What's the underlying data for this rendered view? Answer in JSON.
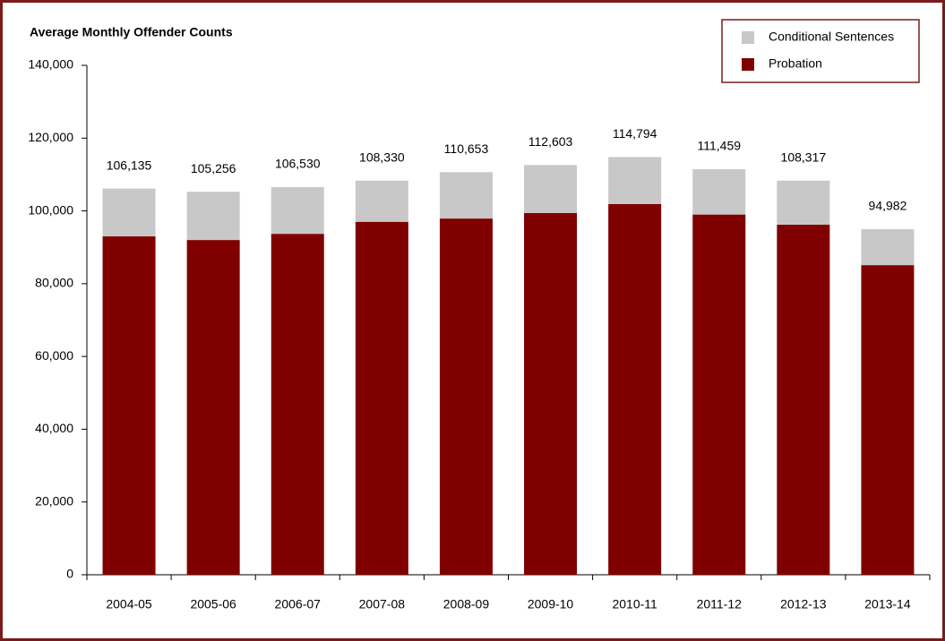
{
  "chart_data": {
    "type": "stacked_bar",
    "title": "Average Monthly Offender Counts",
    "categories": [
      "2004-05",
      "2005-06",
      "2006-07",
      "2007-08",
      "2008-09",
      "2009-10",
      "2010-11",
      "2011-12",
      "2012-13",
      "2013-14"
    ],
    "series": [
      {
        "name": "Probation",
        "color": "#800000",
        "values": [
          93000,
          92000,
          93700,
          97000,
          97900,
          99400,
          101900,
          99000,
          96200,
          85100
        ]
      },
      {
        "name": "Conditional Sentences",
        "color": "#c8c8c8",
        "values": [
          13135,
          13256,
          12830,
          11330,
          12753,
          13203,
          12894,
          12459,
          12117,
          9882
        ]
      }
    ],
    "totals": {
      "values": [
        106135,
        105256,
        106530,
        108330,
        110653,
        112603,
        114794,
        111459,
        108317,
        94982
      ],
      "value_labels": [
        "106,135",
        "105,256",
        "106,530",
        "108,330",
        "110,653",
        "112,603",
        "114,794",
        "111,459",
        "108,317",
        "94,982"
      ]
    },
    "ylim": [
      0,
      140000
    ],
    "yticks": [
      0,
      {
        "value": 20000,
        "label": "20,000"
      },
      {
        "value": 40000,
        "label": "40,000"
      },
      {
        "value": 60000,
        "label": "60,000"
      },
      {
        "value": 80000,
        "label": "80,000"
      },
      {
        "value": 100000,
        "label": "100,000"
      },
      {
        "value": 120000,
        "label": "120,000"
      },
      {
        "value": 140000,
        "label": "140,000"
      }
    ],
    "legend": "top-right",
    "grid": false
  }
}
